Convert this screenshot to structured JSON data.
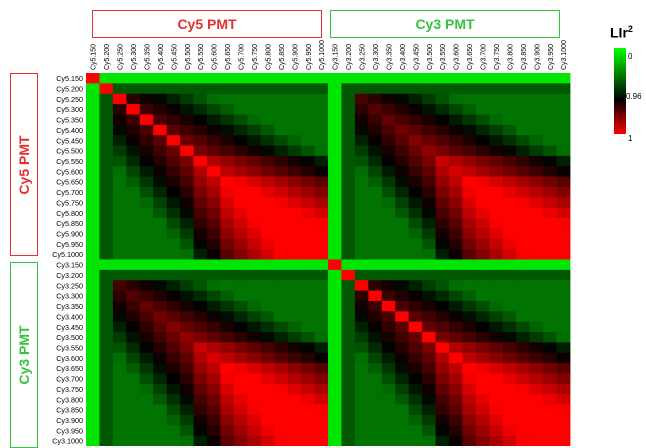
{
  "groups": {
    "cy5": {
      "label": "Cy5 PMT",
      "color": "#e53030"
    },
    "cy3": {
      "label": "Cy3 PMT",
      "color": "#35c43c"
    }
  },
  "legend": {
    "title_main": "LIr",
    "title_sup": "2",
    "ticks": [
      "0",
      "0.96",
      "1"
    ],
    "colors": {
      "low": "#00ff00",
      "mid": "#000000",
      "high": "#ff0000"
    }
  },
  "chart_data": {
    "type": "heatmap",
    "labels": [
      "Cy5.150",
      "Cy5.200",
      "Cy5.250",
      "Cy5.300",
      "Cy5.350",
      "Cy5.400",
      "Cy5.450",
      "Cy5.500",
      "Cy5.550",
      "Cy5.600",
      "Cy5.650",
      "Cy5.700",
      "Cy5.750",
      "Cy5.800",
      "Cy5.850",
      "Cy5.900",
      "Cy5.950",
      "Cy5.1000",
      "Cy3.150",
      "Cy3.200",
      "Cy3.250",
      "Cy3.300",
      "Cy3.350",
      "Cy3.400",
      "Cy3.450",
      "Cy3.500",
      "Cy3.550",
      "Cy3.600",
      "Cy3.650",
      "Cy3.700",
      "Cy3.750",
      "Cy3.800",
      "Cy3.850",
      "Cy3.900",
      "Cy3.950",
      "Cy3.1000"
    ],
    "row_labels_shown": [
      "Cy5.150",
      "Cy5.200",
      "Cy5.250",
      "Cy5.300",
      "Cy5.350",
      "Cy5.400",
      "Cy5.450",
      "Cy5.500",
      "Cy5.550",
      "Cy5.600",
      "Cy5.650",
      "Cy5.700",
      "Cy5.750",
      "Cy5.800",
      "Cy5.850",
      "Cy5.900",
      "Cy5.950",
      "Cy5.1000",
      "Cy3.150",
      "Cy3.200",
      "Cy3.250",
      "Cy3.300",
      "Cy3.350",
      "Cy3.400",
      "Cy3.450",
      "Cy3.500",
      "Cy3.550",
      "Cy3.600",
      "Cy3.650",
      "Cy3.700",
      "Cy3.750",
      "Cy3.800",
      "Cy3.850",
      "Cy3.900",
      "Cy3.950",
      "Cy3.1000"
    ],
    "values_note": "",
    "color_scale": {
      "min": 0,
      "mid": 0.96,
      "max": 1,
      "min_color": "#00ff00",
      "mid_color": "#000000",
      "max_color": "#ff0000"
    }
  }
}
